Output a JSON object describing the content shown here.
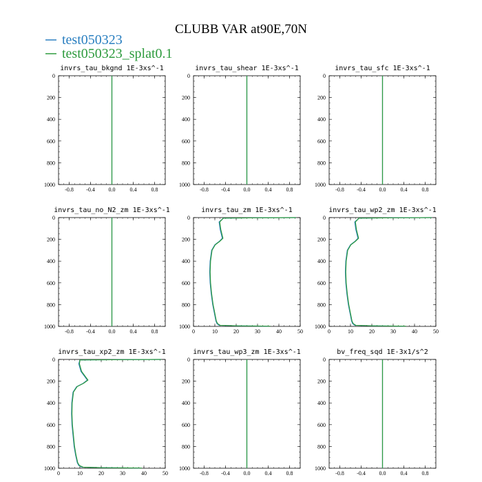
{
  "title": "CLUBB VAR at90E,70N",
  "colors": {
    "series1": "#2a7fc0",
    "series2": "#2e9b3e",
    "axis": "#000000",
    "background": "#ffffff"
  },
  "legend": [
    "test050323",
    "test050323_splat0.1"
  ],
  "chart_data": [
    {
      "type": "line",
      "title": "invrs_tau_bkgnd",
      "units": "1E-3xs^-1",
      "xlim": [
        -1,
        1
      ],
      "ylim": [
        1000,
        0
      ],
      "xticks": [
        -0.8,
        -0.4,
        0.0,
        0.4,
        0.8
      ],
      "xtick_labels": [
        "-0.8",
        "-0.4",
        "0.0",
        "0.4",
        "0.8"
      ],
      "yticks": [
        0,
        200,
        400,
        600,
        800,
        1000
      ],
      "ytick_labels": [
        "0",
        "200",
        "400",
        "600",
        "800",
        "1000"
      ],
      "series": [
        {
          "name": "test050323",
          "x": [
            0,
            0
          ],
          "y": [
            0,
            1000
          ]
        },
        {
          "name": "test050323_splat0.1",
          "x": [
            0,
            0
          ],
          "y": [
            0,
            1000
          ]
        }
      ]
    },
    {
      "type": "line",
      "title": "invrs_tau_shear",
      "units": "1E-3xs^-1",
      "xlim": [
        -1,
        1
      ],
      "ylim": [
        1000,
        0
      ],
      "xticks": [
        -0.8,
        -0.4,
        0.0,
        0.4,
        0.8
      ],
      "xtick_labels": [
        "-0.8",
        "-0.4",
        "0.0",
        "0.4",
        "0.8"
      ],
      "yticks": [
        0,
        200,
        400,
        600,
        800,
        1000
      ],
      "ytick_labels": [
        "0",
        "200",
        "400",
        "600",
        "800",
        "1000"
      ],
      "series": [
        {
          "name": "test050323",
          "x": [
            0,
            0
          ],
          "y": [
            0,
            1000
          ]
        },
        {
          "name": "test050323_splat0.1",
          "x": [
            0,
            0
          ],
          "y": [
            0,
            1000
          ]
        }
      ]
    },
    {
      "type": "line",
      "title": "invrs_tau_sfc",
      "units": "1E-3xs^-1",
      "xlim": [
        -1,
        1
      ],
      "ylim": [
        1000,
        0
      ],
      "xticks": [
        -0.8,
        -0.4,
        0.0,
        0.4,
        0.8
      ],
      "xtick_labels": [
        "-0.8",
        "-0.4",
        "0.0",
        "0.4",
        "0.8"
      ],
      "yticks": [
        0,
        200,
        400,
        600,
        800,
        1000
      ],
      "ytick_labels": [
        "0",
        "200",
        "400",
        "600",
        "800",
        "1000"
      ],
      "series": [
        {
          "name": "test050323",
          "x": [
            0,
            0
          ],
          "y": [
            0,
            1000
          ]
        },
        {
          "name": "test050323_splat0.1",
          "x": [
            0,
            0
          ],
          "y": [
            0,
            1000
          ]
        }
      ]
    },
    {
      "type": "line",
      "title": "invrs_tau_no_N2_zm",
      "units": "1E-3xs^-1",
      "xlim": [
        -1,
        1
      ],
      "ylim": [
        1000,
        0
      ],
      "xticks": [
        -0.8,
        -0.4,
        0.0,
        0.4,
        0.8
      ],
      "xtick_labels": [
        "-0.8",
        "-0.4",
        "0.0",
        "0.4",
        "0.8"
      ],
      "yticks": [
        0,
        200,
        400,
        600,
        800,
        1000
      ],
      "ytick_labels": [
        "0",
        "200",
        "400",
        "600",
        "800",
        "1000"
      ],
      "series": [
        {
          "name": "test050323",
          "x": [
            0,
            0
          ],
          "y": [
            0,
            1000
          ]
        },
        {
          "name": "test050323_splat0.1",
          "x": [
            0,
            0
          ],
          "y": [
            0,
            1000
          ]
        }
      ]
    },
    {
      "type": "line",
      "title": "invrs_tau_zm",
      "units": "1E-3xs^-1",
      "xlim": [
        0,
        50
      ],
      "ylim": [
        1000,
        0
      ],
      "xticks": [
        0,
        10,
        20,
        30,
        40,
        50
      ],
      "xtick_labels": [
        "0",
        "10",
        "20",
        "30",
        "40",
        "50"
      ],
      "yticks": [
        0,
        200,
        400,
        600,
        800,
        1000
      ],
      "ytick_labels": [
        "0",
        "200",
        "400",
        "600",
        "800",
        "1000"
      ],
      "series": [
        {
          "name": "test050323",
          "x": [
            48,
            30,
            14,
            12,
            12.5,
            13.5,
            12,
            10,
            8.5,
            7.8,
            7.6,
            7.8,
            8.3,
            9,
            9.8,
            10.5,
            11,
            12,
            20,
            35
          ],
          "y": [
            0,
            2,
            5,
            40,
            110,
            190,
            220,
            250,
            300,
            400,
            500,
            600,
            700,
            800,
            880,
            950,
            975,
            990,
            995,
            998
          ]
        },
        {
          "name": "test050323_splat0.1",
          "x": [
            48,
            30,
            14,
            12.3,
            12.8,
            13.8,
            12.2,
            10.2,
            8.7,
            8,
            7.8,
            8,
            8.5,
            9.2,
            10,
            10.7,
            11.3,
            12.5,
            21,
            36
          ],
          "y": [
            0,
            2,
            5,
            40,
            110,
            190,
            220,
            250,
            300,
            400,
            500,
            600,
            700,
            800,
            880,
            950,
            975,
            990,
            995,
            998
          ]
        }
      ]
    },
    {
      "type": "line",
      "title": "invrs_tau_wp2_zm",
      "units": "1E-3xs^-1",
      "xlim": [
        0,
        50
      ],
      "ylim": [
        1000,
        0
      ],
      "xticks": [
        0,
        10,
        20,
        30,
        40,
        50
      ],
      "xtick_labels": [
        "0",
        "10",
        "20",
        "30",
        "40",
        "50"
      ],
      "yticks": [
        0,
        200,
        400,
        600,
        800,
        1000
      ],
      "ytick_labels": [
        "0",
        "200",
        "400",
        "600",
        "800",
        "1000"
      ],
      "series": [
        {
          "name": "test050323",
          "x": [
            48,
            30,
            14,
            12,
            12.5,
            13.5,
            12,
            10,
            8.5,
            7.8,
            7.6,
            7.8,
            8.3,
            9,
            9.8,
            10.5,
            11,
            12,
            20,
            35
          ],
          "y": [
            0,
            2,
            5,
            40,
            110,
            190,
            220,
            250,
            300,
            400,
            500,
            600,
            700,
            800,
            880,
            950,
            975,
            990,
            995,
            998
          ]
        },
        {
          "name": "test050323_splat0.1",
          "x": [
            48,
            30,
            14,
            12.3,
            12.8,
            13.8,
            12.2,
            10.2,
            8.7,
            8,
            7.8,
            8,
            8.5,
            9.2,
            10,
            10.7,
            11.3,
            12.5,
            21,
            36
          ],
          "y": [
            0,
            2,
            5,
            40,
            110,
            190,
            220,
            250,
            300,
            400,
            500,
            600,
            700,
            800,
            880,
            950,
            975,
            990,
            995,
            998
          ]
        }
      ]
    },
    {
      "type": "line",
      "title": "invrs_tau_xp2_zm",
      "units": "1E-3xs^-1",
      "xlim": [
        0,
        50
      ],
      "ylim": [
        1000,
        0
      ],
      "xticks": [
        0,
        10,
        20,
        30,
        40,
        50
      ],
      "xtick_labels": [
        "0",
        "10",
        "20",
        "30",
        "40",
        "50"
      ],
      "yticks": [
        0,
        200,
        400,
        600,
        800,
        1000
      ],
      "ytick_labels": [
        "0",
        "200",
        "400",
        "600",
        "800",
        "1000"
      ],
      "series": [
        {
          "name": "test050323",
          "x": [
            48,
            30,
            10,
            9.5,
            10.5,
            13.5,
            11.5,
            8.5,
            6.8,
            6.2,
            6.1,
            6.3,
            6.8,
            7.3,
            8,
            8.8,
            9.5,
            11,
            20,
            38
          ],
          "y": [
            0,
            2,
            5,
            40,
            110,
            190,
            220,
            250,
            300,
            400,
            500,
            600,
            700,
            800,
            880,
            950,
            975,
            990,
            995,
            998
          ]
        },
        {
          "name": "test050323_splat0.1",
          "x": [
            48,
            30,
            10,
            9.8,
            10.8,
            13.8,
            11.7,
            8.7,
            7,
            6.4,
            6.3,
            6.5,
            7,
            7.5,
            8.2,
            9,
            9.8,
            11.5,
            21,
            39
          ],
          "y": [
            0,
            2,
            5,
            40,
            110,
            190,
            220,
            250,
            300,
            400,
            500,
            600,
            700,
            800,
            880,
            950,
            975,
            990,
            995,
            998
          ]
        }
      ]
    },
    {
      "type": "line",
      "title": "invrs_tau_wp3_zm",
      "units": "1E-3xs^-1",
      "xlim": [
        -1,
        1
      ],
      "ylim": [
        1000,
        0
      ],
      "xticks": [
        -0.8,
        -0.4,
        0.0,
        0.4,
        0.8
      ],
      "xtick_labels": [
        "-0.8",
        "-0.4",
        "0.0",
        "0.4",
        "0.8"
      ],
      "yticks": [
        0,
        200,
        400,
        600,
        800,
        1000
      ],
      "ytick_labels": [
        "0",
        "200",
        "400",
        "600",
        "800",
        "1000"
      ],
      "series": [
        {
          "name": "test050323",
          "x": [
            0,
            0
          ],
          "y": [
            0,
            1000
          ]
        },
        {
          "name": "test050323_splat0.1",
          "x": [
            0,
            0
          ],
          "y": [
            0,
            1000
          ]
        }
      ]
    },
    {
      "type": "line",
      "title": "bv_freq_sqd",
      "units": "1E-3x1/s^2",
      "xlim": [
        -1,
        1
      ],
      "ylim": [
        1000,
        0
      ],
      "xticks": [
        -0.8,
        -0.4,
        0.0,
        0.4,
        0.8
      ],
      "xtick_labels": [
        "-0.8",
        "-0.4",
        "0.0",
        "0.4",
        "0.8"
      ],
      "yticks": [
        0,
        200,
        400,
        600,
        800,
        1000
      ],
      "ytick_labels": [
        "0",
        "200",
        "400",
        "600",
        "800",
        "1000"
      ],
      "series": [
        {
          "name": "test050323",
          "x": [
            0,
            0
          ],
          "y": [
            0,
            1000
          ]
        },
        {
          "name": "test050323_splat0.1",
          "x": [
            0,
            0
          ],
          "y": [
            0,
            1000
          ]
        }
      ]
    }
  ]
}
